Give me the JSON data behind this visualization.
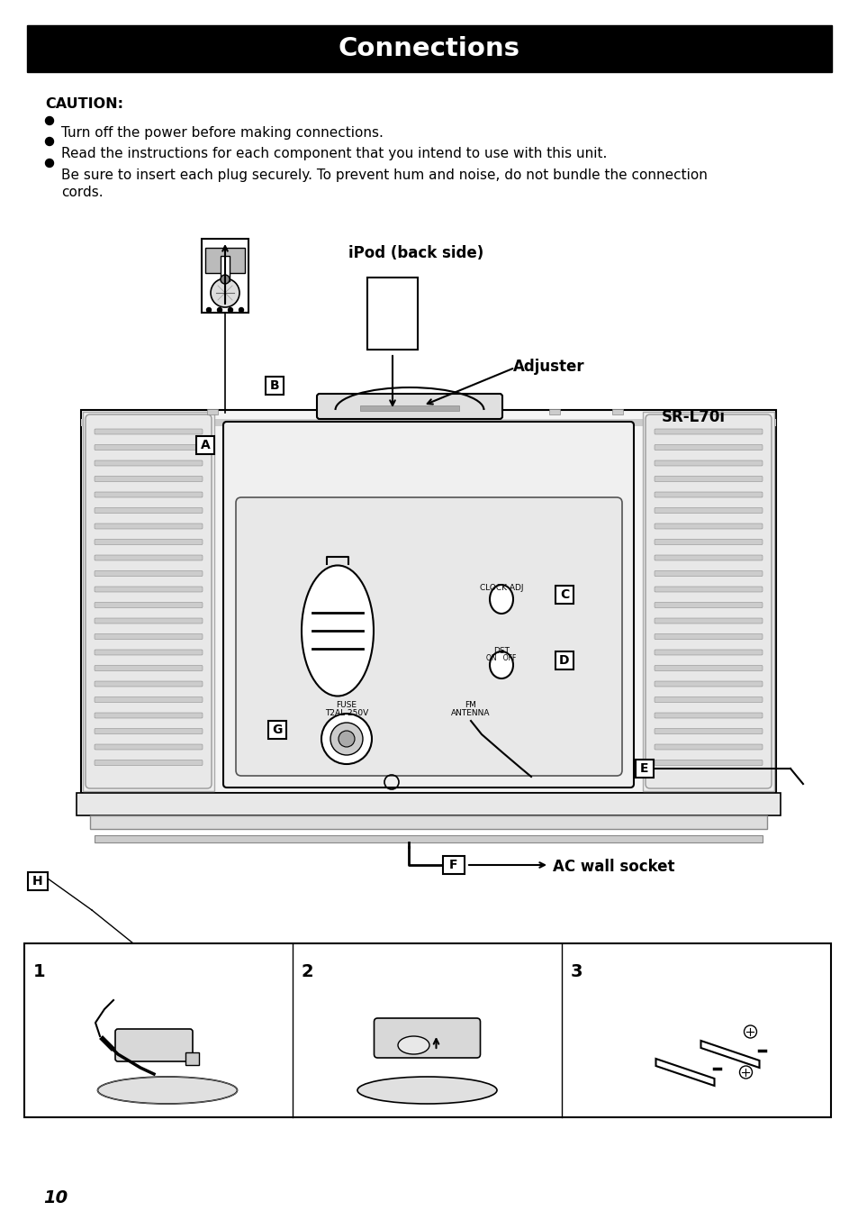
{
  "title": "Connections",
  "page_number": "10",
  "bg": "#ffffff",
  "title_bg": "#000000",
  "title_fg": "#ffffff",
  "caution": "CAUTION:",
  "bullets": [
    "Turn off the power before making connections.",
    "Read the instructions for each component that you intend to use with this unit.",
    "Be sure to insert each plug securely. To prevent hum and noise, do not bundle the connection"
  ],
  "bullets_cont": "cords.",
  "ipod_label": "iPod (back side)",
  "adjuster_label": "Adjuster",
  "sr_label": "SR-L70i",
  "ac_label": "AC wall socket",
  "clock_adj": "CLOCK ADJ",
  "dst": "DST",
  "dst_onoff": "ON   OFF",
  "fuse_line1": "FUSE",
  "fuse_line2": "T2AL 250V",
  "fm_line1": "FM",
  "fm_line2": "ANTENNA",
  "nums": [
    "1",
    "2",
    "3"
  ]
}
